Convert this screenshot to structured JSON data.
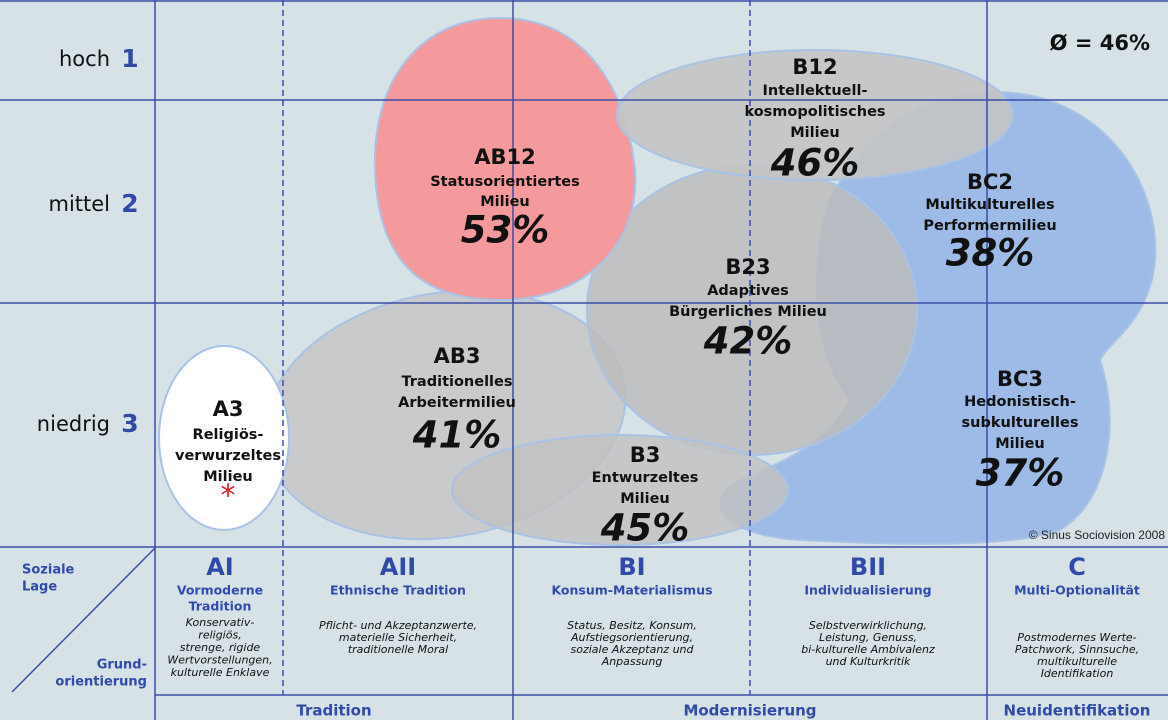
{
  "rows": [
    {
      "label": "hoch",
      "level": "1"
    },
    {
      "label": "mittel",
      "level": "2"
    },
    {
      "label": "niedrig",
      "level": "3"
    }
  ],
  "average": "Ø = 46%",
  "milieus": [
    {
      "code": "AB12",
      "name": [
        "Statusorientiertes",
        "Milieu"
      ],
      "share": "53%"
    },
    {
      "code": "B12",
      "name": [
        "Intellektuell-",
        "kosmopolitisches",
        "Milieu"
      ],
      "share": "46%"
    },
    {
      "code": "BC2",
      "name": [
        "Multikulturelles",
        "Performermilieu"
      ],
      "share": "38%"
    },
    {
      "code": "B23",
      "name": [
        "Adaptives",
        "Bürgerliches Milieu"
      ],
      "share": "42%"
    },
    {
      "code": "AB3",
      "name": [
        "Traditionelles",
        "Arbeitermilieu"
      ],
      "share": "41%"
    },
    {
      "code": "BC3",
      "name": [
        "Hedonistisch-",
        "subkulturelles",
        "Milieu"
      ],
      "share": "37%"
    },
    {
      "code": "B3",
      "name": [
        "Entwurzeltes",
        "Milieu"
      ],
      "share": "45%"
    },
    {
      "code": "A3",
      "name": [
        "Religiös-",
        "verwurzeltes",
        "Milieu"
      ],
      "share": "*"
    }
  ],
  "copyright": "© Sinus Sociovision 2008",
  "axis_corner": {
    "x_label": [
      "Soziale",
      "Lage"
    ],
    "y_label": [
      "Grund-",
      "orientierung"
    ]
  },
  "columns": [
    {
      "code": "AI",
      "title": [
        "Vormoderne",
        "Tradition"
      ],
      "description": [
        "Konservativ-",
        "religiös,",
        "strenge, rigide",
        "Wertvorstellungen,",
        "kulturelle Enklave"
      ]
    },
    {
      "code": "AII",
      "title": [
        "Ethnische Tradition"
      ],
      "description": [
        "Pflicht- und Akzeptanzwerte,",
        "materielle Sicherheit,",
        "traditionelle Moral"
      ]
    },
    {
      "code": "BI",
      "title": [
        "Konsum-Materialismus"
      ],
      "description": [
        "Status, Besitz, Konsum,",
        "Aufstiegsorientierung,",
        "soziale Akzeptanz und",
        "Anpassung"
      ]
    },
    {
      "code": "BII",
      "title": [
        "Individualisierung"
      ],
      "description": [
        "Selbstverwirklichung,",
        "Leistung, Genuss,",
        "bi-kulturelle Ambivalenz",
        "und Kulturkritik"
      ]
    },
    {
      "code": "C",
      "title": [
        "Multi-Optionalität"
      ],
      "description": [
        "Postmodernes Werte-",
        "Patchwork, Sinnsuche,",
        "multikulturelle",
        "Identifikation"
      ]
    }
  ],
  "groups": [
    "Tradition",
    "Modernisierung",
    "Neuidentifikation"
  ]
}
